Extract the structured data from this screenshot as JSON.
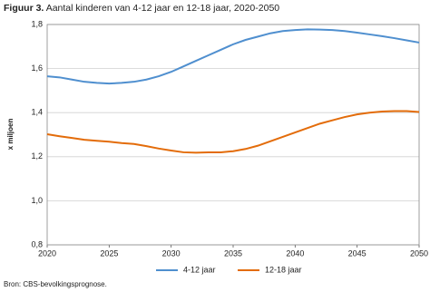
{
  "chart_data": {
    "type": "line",
    "title_label": "Figuur 3.",
    "title": "Aantal kinderen van 4-12 jaar en 12-18 jaar, 2020-2050",
    "ylabel": "x miljoen",
    "source": "Bron: CBS-bevolkingsprognose.",
    "x": [
      2020,
      2021,
      2022,
      2023,
      2024,
      2025,
      2026,
      2027,
      2028,
      2029,
      2030,
      2031,
      2032,
      2033,
      2034,
      2035,
      2036,
      2037,
      2038,
      2039,
      2040,
      2041,
      2042,
      2043,
      2044,
      2045,
      2046,
      2047,
      2048,
      2049,
      2050
    ],
    "series": [
      {
        "name": "4-12 jaar",
        "color": "#4f8fcf",
        "values": [
          1.565,
          1.56,
          1.55,
          1.54,
          1.535,
          1.532,
          1.535,
          1.54,
          1.55,
          1.565,
          1.585,
          1.61,
          1.635,
          1.66,
          1.685,
          1.71,
          1.73,
          1.745,
          1.76,
          1.77,
          1.775,
          1.778,
          1.777,
          1.775,
          1.77,
          1.763,
          1.755,
          1.747,
          1.738,
          1.728,
          1.718
        ]
      },
      {
        "name": "12-18 jaar",
        "color": "#e36c0a",
        "values": [
          1.302,
          1.293,
          1.285,
          1.277,
          1.272,
          1.268,
          1.262,
          1.258,
          1.248,
          1.237,
          1.228,
          1.22,
          1.218,
          1.22,
          1.22,
          1.225,
          1.235,
          1.25,
          1.27,
          1.29,
          1.31,
          1.33,
          1.35,
          1.365,
          1.38,
          1.392,
          1.4,
          1.405,
          1.407,
          1.407,
          1.403
        ]
      }
    ],
    "xlim": [
      2020,
      2050
    ],
    "xticks": [
      2020,
      2025,
      2030,
      2035,
      2040,
      2045,
      2050
    ],
    "ylim": [
      0.8,
      1.8
    ],
    "yticks": [
      {
        "value": 0.8,
        "label": "0,8"
      },
      {
        "value": 1.0,
        "label": "1,0"
      },
      {
        "value": 1.2,
        "label": "1,2"
      },
      {
        "value": 1.4,
        "label": "1,4"
      },
      {
        "value": 1.6,
        "label": "1,6"
      },
      {
        "value": 1.8,
        "label": "1,8"
      }
    ],
    "grid": true
  }
}
